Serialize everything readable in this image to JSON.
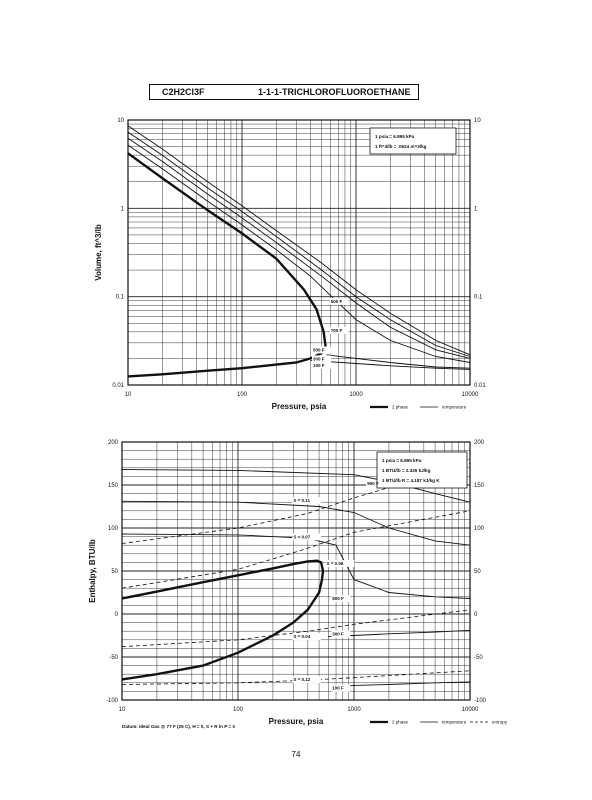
{
  "header": {
    "formula": "C2H2Cl3F",
    "name": "1-1-1-TRICHLOROFLUOROETHANE"
  },
  "page_number": "74",
  "chart_data": [
    {
      "type": "line",
      "xscale": "log",
      "yscale": "log",
      "xlim": [
        10,
        10000
      ],
      "ylim": [
        0.01,
        10
      ],
      "xlabel": "Pressure,  psia",
      "ylabel": "Volume, ft^3/lb",
      "x_ticks": [
        "10",
        "100",
        "1000",
        "10000"
      ],
      "y_ticks": [
        "0.01",
        "0.1",
        "1",
        "10"
      ],
      "y_ticks_right": [
        "0.01",
        "0.1",
        "1",
        "10"
      ],
      "conversions": [
        "1 psia = 6.895 kPa",
        "1 ft^3/lb = .0624 m^3/kg"
      ],
      "legend": [
        "2 phase",
        "temperature"
      ],
      "annotations": [
        "500 F",
        "700 F",
        "500 F",
        "300 F",
        "100 F"
      ],
      "series": [
        {
          "style": "2 phase",
          "x": [
            10,
            20,
            50,
            100,
            200,
            350,
            450,
            520,
            540,
            500,
            400,
            300,
            200,
            100,
            50,
            20,
            10
          ],
          "y": [
            4.2,
            2.2,
            0.95,
            0.52,
            0.27,
            0.12,
            0.072,
            0.04,
            0.028,
            0.023,
            0.02,
            0.018,
            0.017,
            0.0155,
            0.0145,
            0.0132,
            0.0125
          ]
        },
        {
          "style": "temperature",
          "x": [
            10,
            20,
            50,
            100,
            200,
            400,
            700,
            1000,
            2000,
            5000,
            10000
          ],
          "y": [
            5.2,
            2.8,
            1.2,
            0.65,
            0.34,
            0.17,
            0.085,
            0.055,
            0.032,
            0.021,
            0.018
          ]
        },
        {
          "style": "temperature",
          "x": [
            10,
            20,
            50,
            100,
            200,
            500,
            1000,
            2000,
            5000,
            10000
          ],
          "y": [
            6.2,
            3.4,
            1.45,
            0.78,
            0.41,
            0.17,
            0.085,
            0.045,
            0.025,
            0.02
          ]
        },
        {
          "style": "temperature",
          "x": [
            10,
            20,
            50,
            100,
            200,
            500,
            1000,
            2000,
            5000,
            10000
          ],
          "y": [
            7.3,
            4.0,
            1.7,
            0.92,
            0.48,
            0.2,
            0.1,
            0.055,
            0.028,
            0.021
          ]
        },
        {
          "style": "temperature",
          "x": [
            10,
            20,
            50,
            100,
            200,
            500,
            1000,
            2000,
            5000,
            10000
          ],
          "y": [
            8.6,
            4.7,
            2.0,
            1.07,
            0.56,
            0.24,
            0.12,
            0.065,
            0.032,
            0.022
          ]
        },
        {
          "style": "temperature",
          "x": [
            550,
            1000,
            2000,
            5000,
            10000
          ],
          "y": [
            0.022,
            0.02,
            0.018,
            0.016,
            0.0155
          ]
        },
        {
          "style": "temperature",
          "x": [
            400,
            1000,
            2000,
            5000,
            10000
          ],
          "y": [
            0.019,
            0.0175,
            0.0165,
            0.0155,
            0.015
          ]
        }
      ]
    },
    {
      "type": "line",
      "xscale": "log",
      "xlim": [
        10,
        10000
      ],
      "ylim": [
        -100,
        200
      ],
      "xlabel": "Pressure,  psia",
      "ylabel": "Enthalpy, BTU/lb",
      "x_ticks": [
        "10",
        "100",
        "1000",
        "10000"
      ],
      "y_ticks": [
        "-100",
        "-50",
        "0",
        "50",
        "100",
        "150",
        "200"
      ],
      "y_ticks_right": [
        "-100",
        "-50",
        "0",
        "50",
        "100",
        "150",
        "200"
      ],
      "conversions": [
        "1 psia = 6.895 kPa",
        "1 BTU/lb = 2.326 kJ/kg",
        "1 BTU/lb R = 4.187 kJ/kg K"
      ],
      "legend": [
        "2 phase",
        "temperature",
        "entropy"
      ],
      "footnote": "Datum: Ideal Gas @ 77 F (25 C),  H = 0,  S + R ln P = 0",
      "annotations": [
        "900 F",
        "S = 0.11",
        "S = 0.07",
        "S = 0.06",
        "500 F",
        "300 F",
        "S = 0.04",
        "S = 0.12",
        "100 F"
      ],
      "series": [
        {
          "style": "2 phase",
          "x": [
            10,
            20,
            50,
            100,
            200,
            300,
            400,
            480,
            520,
            540,
            530,
            500,
            400,
            300,
            200,
            100,
            50,
            20,
            10
          ],
          "y": [
            18,
            26,
            37,
            45,
            53,
            58,
            61,
            62,
            60,
            50,
            40,
            25,
            5,
            -10,
            -25,
            -45,
            -60,
            -70,
            -76
          ]
        },
        {
          "style": "temperature",
          "x": [
            10,
            100,
            1000,
            2000,
            5000,
            10000
          ],
          "y": [
            168,
            167,
            162,
            154,
            140,
            130
          ]
        },
        {
          "style": "temperature",
          "x": [
            10,
            100,
            500,
            1000,
            2000,
            5000,
            10000
          ],
          "y": [
            131,
            130,
            125,
            118,
            100,
            85,
            80
          ]
        },
        {
          "style": "temperature",
          "x": [
            10,
            100,
            400,
            700,
            1000,
            2000,
            5000,
            10000
          ],
          "y": [
            93,
            92,
            88,
            80,
            40,
            25,
            20,
            18
          ]
        },
        {
          "style": "temperature",
          "x": [
            600,
            1000,
            2000,
            5000,
            10000
          ],
          "y": [
            -26,
            -25,
            -23,
            -21,
            -19
          ]
        },
        {
          "style": "temperature",
          "x": [
            800,
            1000,
            2000,
            5000,
            10000
          ],
          "y": [
            -84,
            -83,
            -82,
            -80,
            -79
          ]
        },
        {
          "style": "entropy",
          "x": [
            10,
            100,
            400,
            1000,
            10000
          ],
          "y": [
            82,
            100,
            117,
            135,
            175
          ]
        },
        {
          "style": "entropy",
          "x": [
            10,
            100,
            350,
            1000,
            10000
          ],
          "y": [
            30,
            52,
            74,
            95,
            120
          ]
        },
        {
          "style": "entropy",
          "x": [
            10,
            100,
            400,
            1000,
            10000
          ],
          "y": [
            -38,
            -30,
            -20,
            -12,
            5
          ]
        },
        {
          "style": "entropy",
          "x": [
            10,
            100,
            400,
            1000,
            10000
          ],
          "y": [
            -82,
            -80,
            -77,
            -74,
            -66
          ]
        }
      ]
    }
  ]
}
